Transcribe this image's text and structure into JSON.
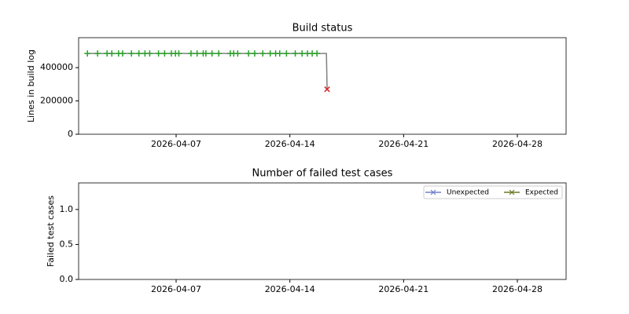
{
  "chart_data": [
    {
      "type": "line",
      "title": "Build status",
      "ylabel": "Lines in build log",
      "xlim": [
        "2026-04-01",
        "2026-05-01"
      ],
      "xticks": [
        "2026-04-07",
        "2026-04-14",
        "2026-04-21",
        "2026-04-28"
      ],
      "ylim": [
        0,
        580000
      ],
      "yticks": [
        0,
        200000,
        400000
      ],
      "marker_colors": {
        "plus": "#2ca02c",
        "cross": "#d62728"
      },
      "series": [
        {
          "color": "#808080",
          "x": [
            "2026-04-01T13:00",
            "2026-04-02T04:00",
            "2026-04-02T18:00",
            "2026-04-03T01:00",
            "2026-04-03T11:00",
            "2026-04-03T17:00",
            "2026-04-04T06:00",
            "2026-04-04T17:00",
            "2026-04-05T02:00",
            "2026-04-05T09:00",
            "2026-04-05T22:00",
            "2026-04-06T07:00",
            "2026-04-06T17:00",
            "2026-04-06T23:00",
            "2026-04-07T04:00",
            "2026-04-07T22:00",
            "2026-04-08T07:00",
            "2026-04-08T16:00",
            "2026-04-08T20:00",
            "2026-04-09T05:00",
            "2026-04-09T15:00",
            "2026-04-10T08:00",
            "2026-04-10T13:00",
            "2026-04-10T19:00",
            "2026-04-11T11:00",
            "2026-04-11T20:00",
            "2026-04-12T08:00",
            "2026-04-12T19:00",
            "2026-04-13T03:00",
            "2026-04-13T09:00",
            "2026-04-13T19:00",
            "2026-04-14T08:00",
            "2026-04-14T18:00",
            "2026-04-15T02:00",
            "2026-04-15T09:00",
            "2026-04-15T16:00",
            "2026-04-16T06:00",
            "2026-04-16T07:00"
          ],
          "values": [
            485000,
            485000,
            485000,
            485000,
            485000,
            485000,
            485000,
            485000,
            485000,
            485000,
            485000,
            485000,
            485000,
            485000,
            485000,
            485000,
            485000,
            485000,
            485000,
            485000,
            485000,
            485000,
            485000,
            485000,
            485000,
            485000,
            485000,
            485000,
            485000,
            485000,
            485000,
            485000,
            485000,
            485000,
            485000,
            485000,
            485000,
            270000
          ],
          "markers": [
            "plus",
            "plus",
            "plus",
            "plus",
            "plus",
            "plus",
            "plus",
            "plus",
            "plus",
            "plus",
            "plus",
            "plus",
            "plus",
            "plus",
            "plus",
            "plus",
            "plus",
            "plus",
            "plus",
            "plus",
            "plus",
            "plus",
            "plus",
            "plus",
            "plus",
            "plus",
            "plus",
            "plus",
            "plus",
            "plus",
            "plus",
            "plus",
            "plus",
            "plus",
            "plus",
            "plus",
            null,
            "cross"
          ]
        }
      ]
    },
    {
      "type": "line",
      "title": "Number of failed test cases",
      "ylabel": "Failed test cases",
      "xlim": [
        "2026-04-01",
        "2026-05-01"
      ],
      "xticks": [
        "2026-04-07",
        "2026-04-14",
        "2026-04-21",
        "2026-04-28"
      ],
      "ylim": [
        0,
        1.38
      ],
      "yticks": [
        {
          "value": 0,
          "label": "0.0"
        },
        {
          "value": 0.5,
          "label": "0.5"
        },
        {
          "value": 1,
          "label": "1.0"
        }
      ],
      "legend": "upper right",
      "series": [
        {
          "name": "Unexpected",
          "color": "#7080c8",
          "x": [],
          "values": []
        },
        {
          "name": "Expected",
          "color": "#6b7a2a",
          "x": [],
          "values": []
        }
      ]
    }
  ]
}
